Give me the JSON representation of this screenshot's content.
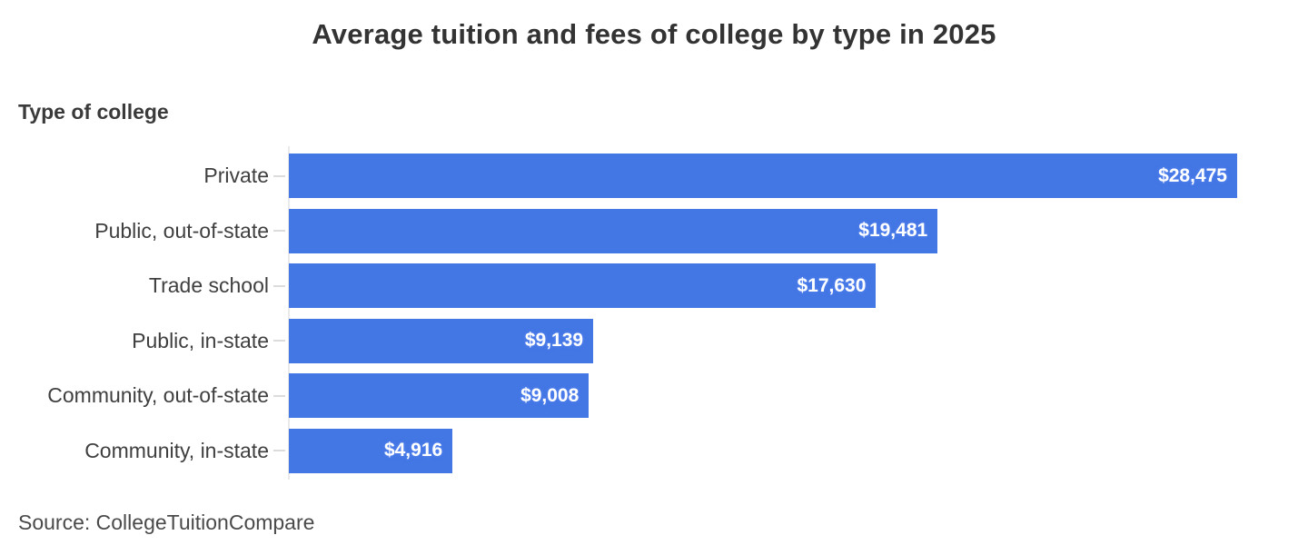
{
  "title": "Average tuition and fees of college by type in 2025",
  "axis_label": "Type of college",
  "source": "Source: CollegeTuitionCompare",
  "colors": {
    "bar": "#4377e4",
    "title_text": "#333333",
    "category_text": "#3f3f3f",
    "value_text": "#ffffff",
    "axis_line": "#eaeaea",
    "tick": "#dcdcdc",
    "background": "#ffffff"
  },
  "chart_data": {
    "type": "bar",
    "orientation": "horizontal",
    "title": "Average tuition and fees of college by type in 2025",
    "ylabel": "Type of college",
    "xlabel": "",
    "categories": [
      "Private",
      "Public, out-of-state",
      "Trade school",
      "Public, in-state",
      "Community, out-of-state",
      "Community, in-state"
    ],
    "values": [
      28475,
      19481,
      17630,
      9139,
      9008,
      4916
    ],
    "value_labels": [
      "$28,475",
      "$19,481",
      "$17,630",
      "$9,139",
      "$9,008",
      "$4,916"
    ],
    "xlim": [
      0,
      28475
    ],
    "grid": false,
    "legend": false,
    "value_labels_position": "inside-end",
    "source": "Source: CollegeTuitionCompare"
  }
}
